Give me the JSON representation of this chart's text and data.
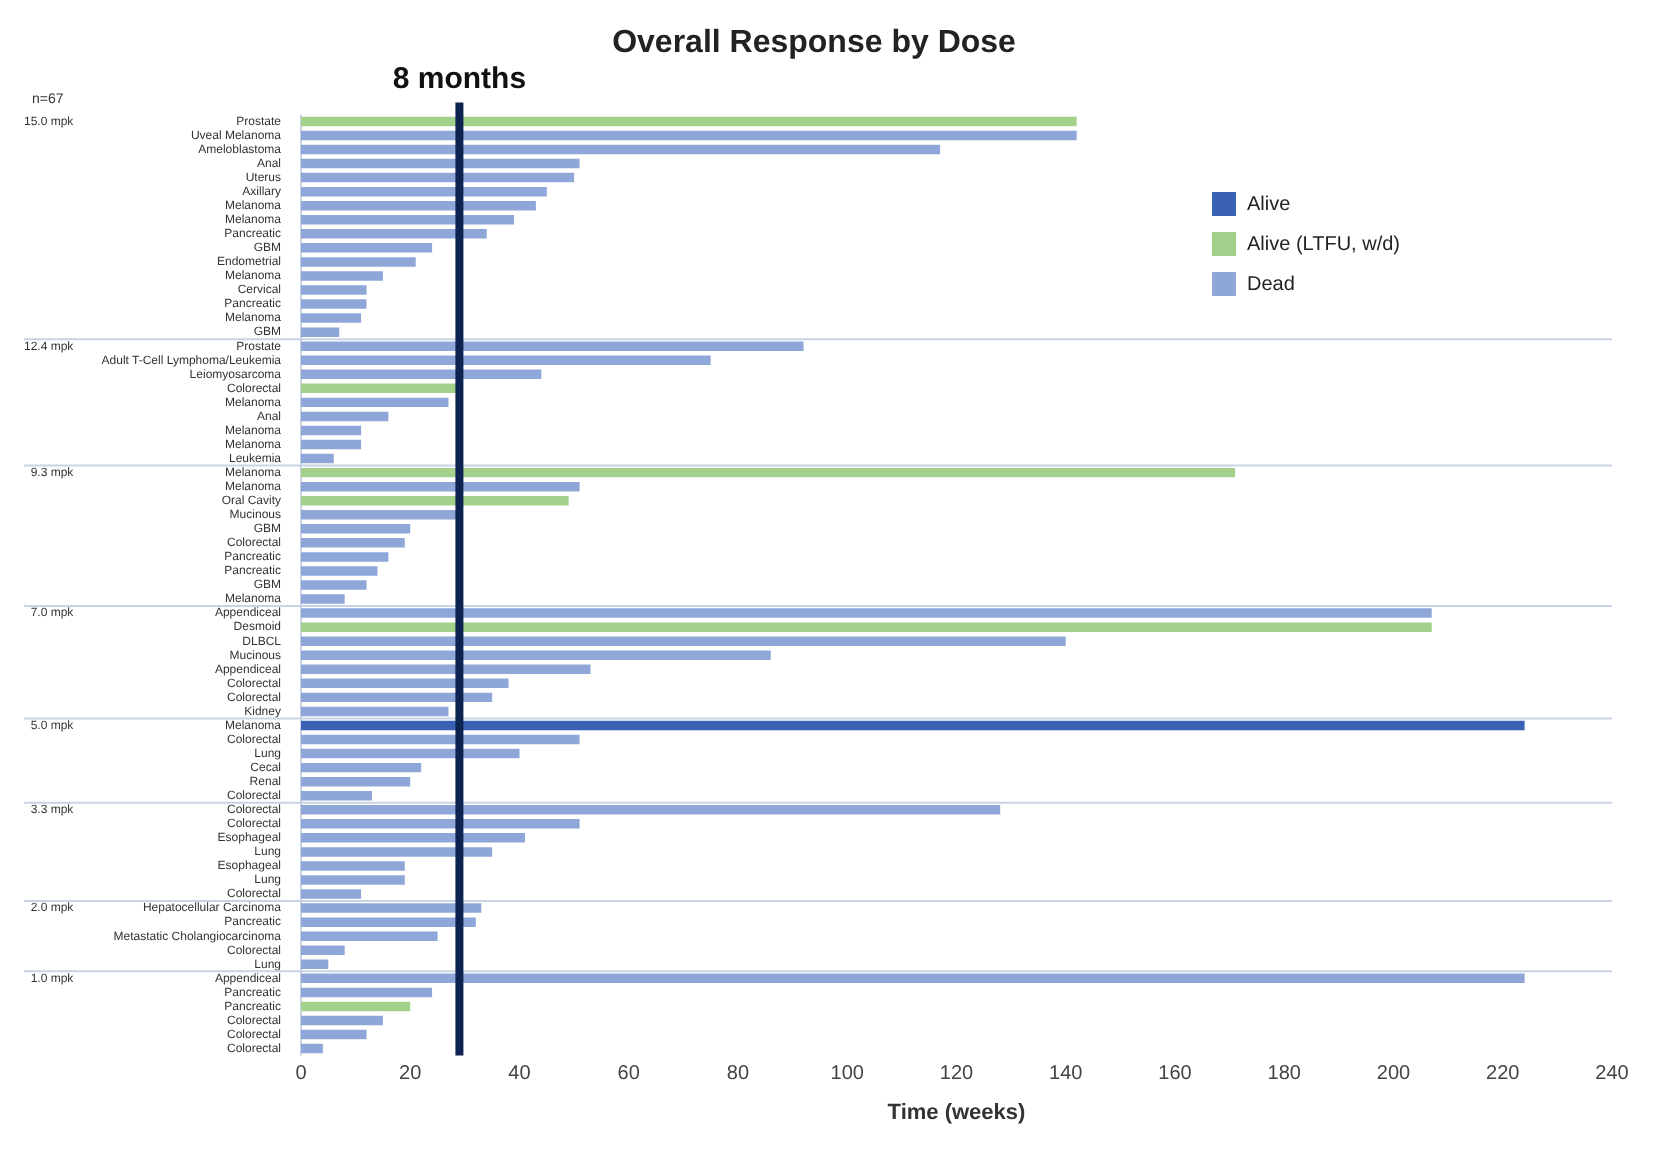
{
  "chart_data": {
    "type": "bar",
    "orientation": "horizontal",
    "stacked": true,
    "title": "Overall Response by Dose",
    "xlabel": "Time (weeks)",
    "categories": [
      "Prostate",
      "Uveal Melanoma",
      "Ameloblastoma",
      "Anal",
      "Uterus",
      "Axillary",
      "Melanoma",
      "Melanoma",
      "Pancreatic",
      "GBM",
      "Endometrial",
      "Melanoma",
      "Cervical",
      "Pancreatic",
      "Melanoma",
      "GBM",
      "Prostate",
      "Adult T-Cell Lymphoma/Leukemia",
      "Leiomyosarcoma",
      "Colorectal",
      "Melanoma",
      "Anal",
      "Melanoma",
      "Melanoma",
      "Leukemia",
      "Melanoma",
      "Melanoma",
      "Oral Cavity",
      "Mucinous",
      "GBM",
      "Colorectal",
      "Pancreatic",
      "Pancreatic",
      "GBM",
      "Melanoma",
      "Appendiceal",
      "Desmoid",
      "DLBCL",
      "Mucinous",
      "Appendiceal",
      "Colorectal",
      "Colorectal",
      "Kidney",
      "Melanoma",
      "Colorectal",
      "Lung",
      "Cecal",
      "Renal",
      "Colorectal",
      "Colorectal",
      "Colorectal",
      "Esophageal",
      "Lung",
      "Esophageal",
      "Lung",
      "Colorectal",
      "Hepatocellular Carcinoma",
      "Pancreatic",
      "Metastatic Cholangiocarcinoma",
      "Colorectal",
      "Lung",
      "Appendiceal",
      "Pancreatic",
      "Pancreatic",
      "Colorectal",
      "Colorectal",
      "Colorectal"
    ],
    "y2_categories": [
      "15.0 mpk",
      null,
      null,
      null,
      null,
      null,
      null,
      null,
      null,
      null,
      null,
      null,
      null,
      null,
      null,
      null,
      "12.4 mpk",
      null,
      null,
      null,
      null,
      null,
      null,
      null,
      null,
      "9.3 mpk",
      null,
      null,
      null,
      null,
      null,
      null,
      null,
      null,
      null,
      "7.0 mpk",
      null,
      null,
      null,
      null,
      null,
      null,
      null,
      "5.0 mpk",
      null,
      null,
      null,
      null,
      null,
      "3.3 mpk",
      null,
      null,
      null,
      null,
      null,
      null,
      "2.0 mpk",
      null,
      null,
      null,
      null,
      "1.0 mpk",
      null,
      null,
      null,
      null,
      null
    ],
    "series": [
      {
        "name": "Alive",
        "color": "#3a62b4",
        "values": [
          null,
          null,
          null,
          null,
          null,
          null,
          null,
          null,
          null,
          null,
          null,
          null,
          null,
          null,
          null,
          null,
          null,
          null,
          null,
          null,
          null,
          null,
          null,
          null,
          null,
          null,
          null,
          null,
          null,
          null,
          null,
          null,
          null,
          null,
          null,
          null,
          null,
          null,
          null,
          null,
          null,
          null,
          null,
          224,
          null,
          null,
          null,
          null,
          null,
          null,
          null,
          null,
          null,
          null,
          null,
          null,
          null,
          null,
          null,
          null,
          null,
          null,
          null,
          null,
          null,
          null,
          null
        ]
      },
      {
        "name": "Alive (LTFU, w/d)",
        "color": "#a3d08a",
        "values": [
          142,
          null,
          null,
          null,
          null,
          null,
          null,
          null,
          null,
          null,
          null,
          null,
          null,
          null,
          null,
          null,
          null,
          null,
          null,
          29,
          null,
          null,
          null,
          null,
          null,
          171,
          null,
          49,
          null,
          null,
          null,
          null,
          null,
          null,
          null,
          null,
          207,
          null,
          null,
          null,
          null,
          null,
          null,
          null,
          null,
          null,
          null,
          null,
          null,
          null,
          null,
          null,
          null,
          null,
          null,
          null,
          null,
          null,
          null,
          null,
          null,
          null,
          null,
          20,
          null,
          null,
          null
        ]
      },
      {
        "name": "Dead",
        "color": "#8fa7d8",
        "values": [
          null,
          142,
          117,
          51,
          50,
          45,
          43,
          39,
          34,
          24,
          21,
          15,
          12,
          12,
          11,
          7,
          92,
          75,
          44,
          null,
          27,
          16,
          11,
          11,
          6,
          null,
          51,
          null,
          29,
          20,
          19,
          16,
          14,
          12,
          8,
          207,
          null,
          140,
          86,
          53,
          38,
          35,
          27,
          null,
          51,
          40,
          22,
          20,
          13,
          128,
          51,
          41,
          35,
          19,
          19,
          11,
          33,
          32,
          25,
          8,
          5,
          224,
          24,
          null,
          15,
          12,
          4
        ]
      }
    ],
    "xlim": [
      0,
      240
    ],
    "xticks": [
      0,
      20,
      40,
      60,
      80,
      100,
      120,
      140,
      160,
      180,
      200,
      220,
      240
    ],
    "ref_lines": [
      {
        "axis": "x",
        "value": 29,
        "label": "8 months",
        "color": "#0d2350"
      }
    ],
    "annotations": [
      "n=67"
    ],
    "legend": "top right",
    "grid": false
  }
}
